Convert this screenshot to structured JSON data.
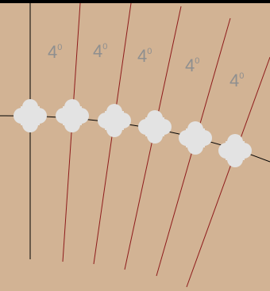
{
  "colors": {
    "background": "#d2b394",
    "top_bar": "#000000",
    "vertical_line": "#000000",
    "red_lines": "#8e1b1b",
    "curve": "#000000",
    "shapes": "#e3e3e3",
    "labels": "#8f8f8f"
  },
  "labels": [
    {
      "value": "4",
      "unit": "0"
    },
    {
      "value": "4",
      "unit": "0"
    },
    {
      "value": "4",
      "unit": "0"
    },
    {
      "value": "4",
      "unit": "0"
    },
    {
      "value": "4",
      "unit": "0"
    }
  ],
  "shape_count": 6,
  "red_line_count": 6
}
